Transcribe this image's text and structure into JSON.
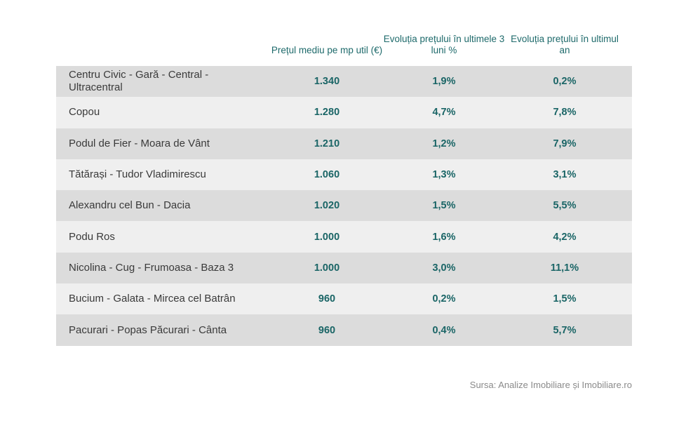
{
  "table": {
    "headers": {
      "name": "",
      "col1": "Prețul mediu pe mp util (€)",
      "col2": "Evoluția prețului în ultimele 3 luni %",
      "col3": "Evoluția prețului în ultimul an"
    },
    "rows": [
      {
        "name": "Centru Civic - Gară - Central - Ultracentral",
        "price": "1.340",
        "change_3m": "1,9%",
        "change_1y": "0,2%"
      },
      {
        "name": "Copou",
        "price": "1.280",
        "change_3m": "4,7%",
        "change_1y": "7,8%"
      },
      {
        "name": "Podul de Fier - Moara de Vânt",
        "price": "1.210",
        "change_3m": "1,2%",
        "change_1y": "7,9%"
      },
      {
        "name": "Tătărași - Tudor Vladimirescu",
        "price": "1.060",
        "change_3m": "1,3%",
        "change_1y": "3,1%"
      },
      {
        "name": "Alexandru cel Bun - Dacia",
        "price": "1.020",
        "change_3m": "1,5%",
        "change_1y": "5,5%"
      },
      {
        "name": "Podu Ros",
        "price": "1.000",
        "change_3m": "1,6%",
        "change_1y": "4,2%"
      },
      {
        "name": "Nicolina - Cug - Frumoasa - Baza 3",
        "price": "1.000",
        "change_3m": "3,0%",
        "change_1y": "11,1%"
      },
      {
        "name": "Bucium - Galata - Mircea cel Batrân",
        "price": "960",
        "change_3m": "0,2%",
        "change_1y": "1,5%"
      },
      {
        "name": "Pacurari - Popas Păcurari - Cânta",
        "price": "960",
        "change_3m": "0,4%",
        "change_1y": "5,7%"
      }
    ]
  },
  "source": "Sursa: Analize Imobiliare și Imobiliare.ro",
  "colors": {
    "accent": "#1a6566",
    "row_dark": "#dcdcdc",
    "row_light": "#efefef"
  },
  "chart_data": {
    "type": "table",
    "columns": [
      "",
      "Prețul mediu pe mp util (€)",
      "Evoluția prețului în ultimele 3 luni %",
      "Evoluția prețului în ultimul an"
    ],
    "categories": [
      "Centru Civic - Gară - Central - Ultracentral",
      "Copou",
      "Podul de Fier - Moara de Vânt",
      "Tătărași - Tudor Vladimirescu",
      "Alexandru cel Bun - Dacia",
      "Podu Ros",
      "Nicolina - Cug - Frumoasa - Baza 3",
      "Bucium - Galata - Mircea cel Batrân",
      "Pacurari - Popas Păcurari - Cânta"
    ],
    "series": [
      {
        "name": "Prețul mediu pe mp util (€)",
        "values": [
          1340,
          1280,
          1210,
          1060,
          1020,
          1000,
          1000,
          960,
          960
        ]
      },
      {
        "name": "Evoluția prețului în ultimele 3 luni %",
        "values": [
          1.9,
          4.7,
          1.2,
          1.3,
          1.5,
          1.6,
          3.0,
          0.2,
          0.4
        ]
      },
      {
        "name": "Evoluția prețului în ultimul an",
        "values": [
          0.2,
          7.8,
          7.9,
          3.1,
          5.5,
          4.2,
          11.1,
          1.5,
          5.7
        ]
      }
    ]
  }
}
